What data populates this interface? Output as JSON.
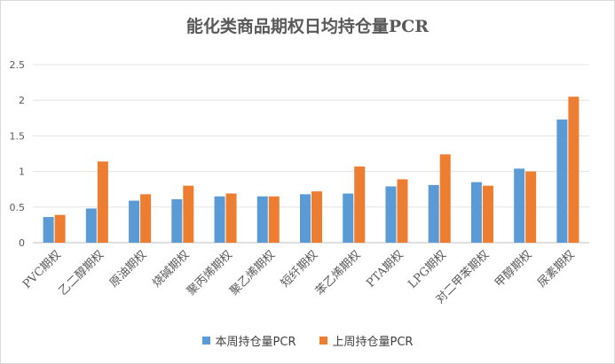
{
  "chart_data": {
    "type": "bar",
    "title": "能化类商品期权日均持仓量PCR",
    "xlabel": "",
    "ylabel": "",
    "ylim": [
      0,
      2.5
    ],
    "yticks": [
      "0",
      "0.5",
      "1",
      "1.5",
      "2",
      "2.5"
    ],
    "grid": true,
    "legend_position": "bottom",
    "categories": [
      "PVC期权",
      "乙二醇期权",
      "原油期权",
      "烧碱期权",
      "聚丙烯期权",
      "聚乙烯期权",
      "短纤期权",
      "苯乙烯期权",
      "PTA期权",
      "LPG期权",
      "对二甲苯期权",
      "甲醇期权",
      "尿素期权"
    ],
    "series": [
      {
        "name": "本周持仓量PCR",
        "color": "#5b9bd5",
        "values": [
          0.36,
          0.48,
          0.59,
          0.61,
          0.65,
          0.65,
          0.68,
          0.69,
          0.79,
          0.81,
          0.85,
          1.04,
          1.73
        ]
      },
      {
        "name": "上周持仓量PCR",
        "color": "#ed7d31",
        "values": [
          0.39,
          1.14,
          0.68,
          0.8,
          0.69,
          0.65,
          0.72,
          1.07,
          0.89,
          1.24,
          0.8,
          1.0,
          2.05
        ]
      }
    ]
  }
}
